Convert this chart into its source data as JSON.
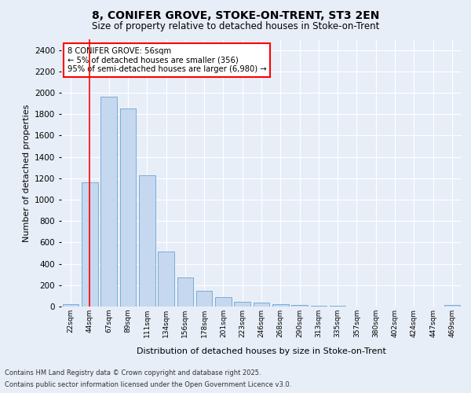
{
  "title_line1": "8, CONIFER GROVE, STOKE-ON-TRENT, ST3 2EN",
  "title_line2": "Size of property relative to detached houses in Stoke-on-Trent",
  "xlabel": "Distribution of detached houses by size in Stoke-on-Trent",
  "ylabel": "Number of detached properties",
  "categories": [
    "22sqm",
    "44sqm",
    "67sqm",
    "89sqm",
    "111sqm",
    "134sqm",
    "156sqm",
    "178sqm",
    "201sqm",
    "223sqm",
    "246sqm",
    "268sqm",
    "290sqm",
    "313sqm",
    "335sqm",
    "357sqm",
    "380sqm",
    "402sqm",
    "424sqm",
    "447sqm",
    "469sqm"
  ],
  "values": [
    25,
    1160,
    1960,
    1850,
    1230,
    515,
    275,
    150,
    90,
    45,
    40,
    20,
    15,
    8,
    5,
    3,
    2,
    2,
    1,
    1,
    15
  ],
  "bar_color": "#c5d8f0",
  "bar_edge_color": "#7aadd4",
  "background_color": "#e8eef8",
  "grid_color": "#ffffff",
  "vline_x": 1,
  "vline_color": "red",
  "annotation_title": "8 CONIFER GROVE: 56sqm",
  "annotation_line2": "← 5% of detached houses are smaller (356)",
  "annotation_line3": "95% of semi-detached houses are larger (6,980) →",
  "annotation_box_color": "#ffffff",
  "annotation_box_edge": "red",
  "ylim": [
    0,
    2500
  ],
  "yticks": [
    0,
    200,
    400,
    600,
    800,
    1000,
    1200,
    1400,
    1600,
    1800,
    2000,
    2200,
    2400
  ],
  "footnote1": "Contains HM Land Registry data © Crown copyright and database right 2025.",
  "footnote2": "Contains public sector information licensed under the Open Government Licence v3.0."
}
